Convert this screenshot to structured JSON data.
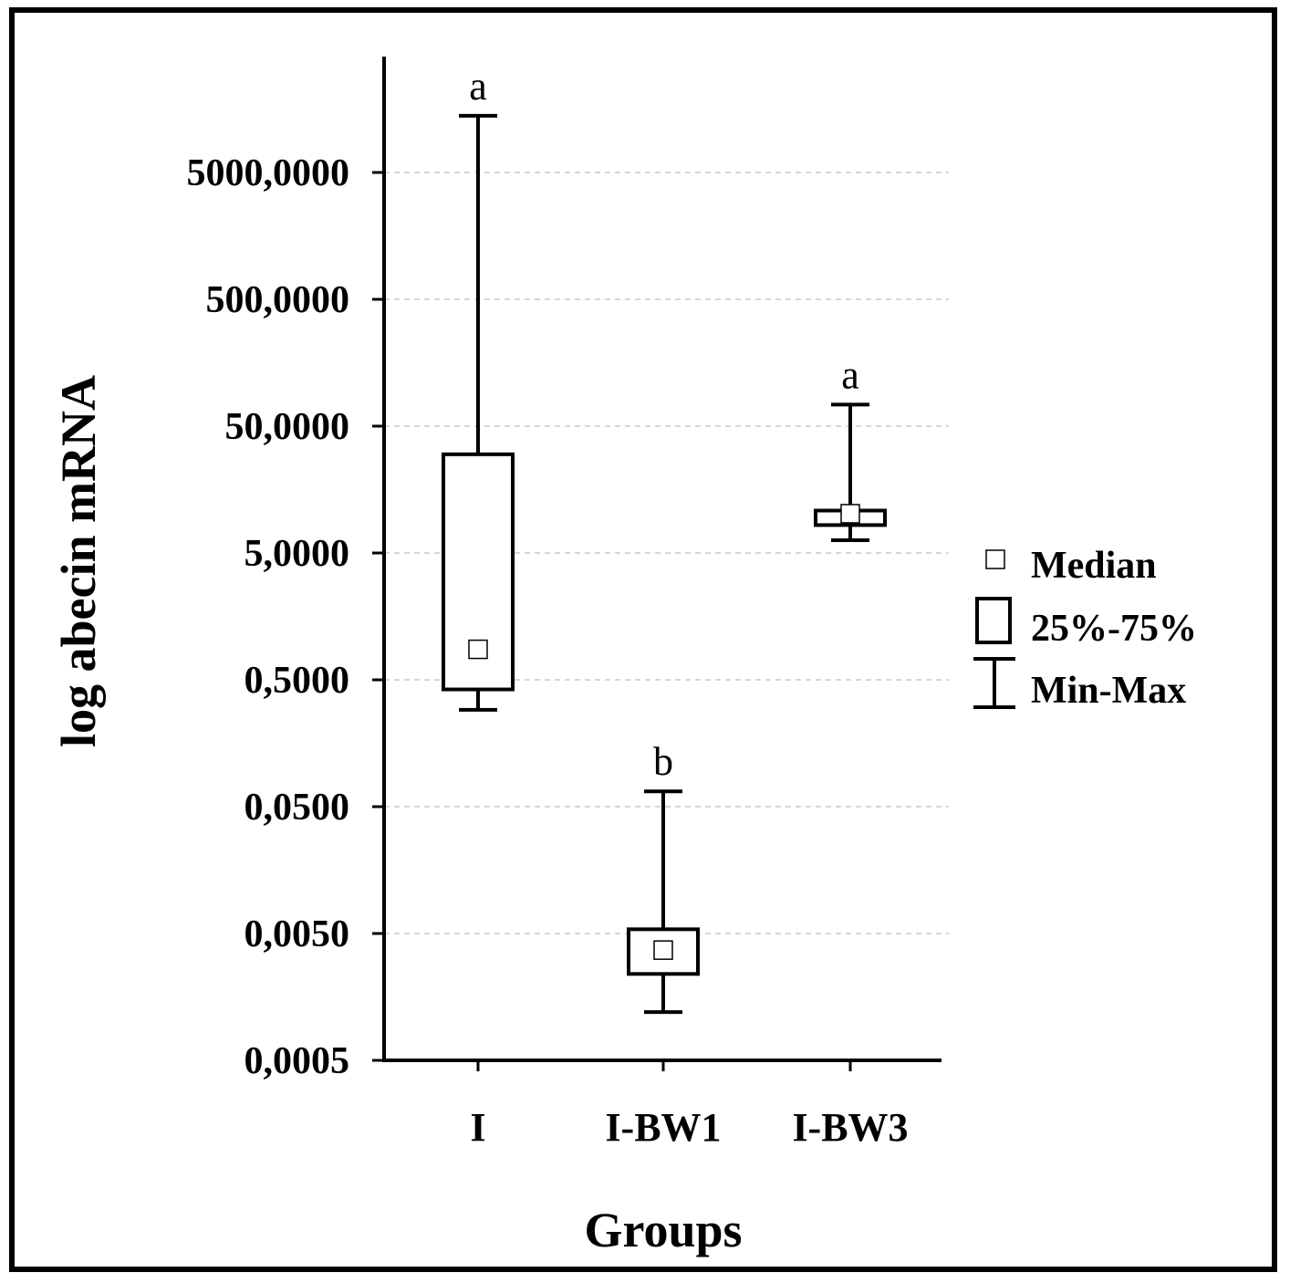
{
  "chart_data": {
    "type": "box",
    "xlabel": "Groups",
    "ylabel": "log abecin mRNA",
    "y_scale": "log",
    "ylim": [
      0.0005,
      15000
    ],
    "y_ticks": [
      {
        "value": 0.0005,
        "label": "0,0005"
      },
      {
        "value": 0.005,
        "label": "0,0050"
      },
      {
        "value": 0.05,
        "label": "0,0500"
      },
      {
        "value": 0.5,
        "label": "0,5000"
      },
      {
        "value": 5,
        "label": "5,0000"
      },
      {
        "value": 50,
        "label": "50,0000"
      },
      {
        "value": 500,
        "label": "500,0000"
      },
      {
        "value": 5000,
        "label": "5000,0000"
      }
    ],
    "grid": true,
    "legend_position": "right",
    "legend": [
      {
        "symbol": "median",
        "label": "Median"
      },
      {
        "symbol": "box",
        "label": "25%-75%"
      },
      {
        "symbol": "whisker",
        "label": "Min-Max"
      }
    ],
    "categories": [
      "I",
      "I-BW1",
      "I-BW3"
    ],
    "boxes": [
      {
        "name": "I",
        "min": 0.29,
        "q1": 0.42,
        "median": 0.87,
        "q3": 30,
        "max": 14000,
        "sig": "a"
      },
      {
        "name": "I-BW1",
        "min": 0.0012,
        "q1": 0.0024,
        "median": 0.0037,
        "q3": 0.0054,
        "max": 0.066,
        "sig": "b"
      },
      {
        "name": "I-BW3",
        "min": 6.3,
        "q1": 8.3,
        "median": 10.2,
        "q3": 10.8,
        "max": 74,
        "sig": "a"
      }
    ]
  }
}
